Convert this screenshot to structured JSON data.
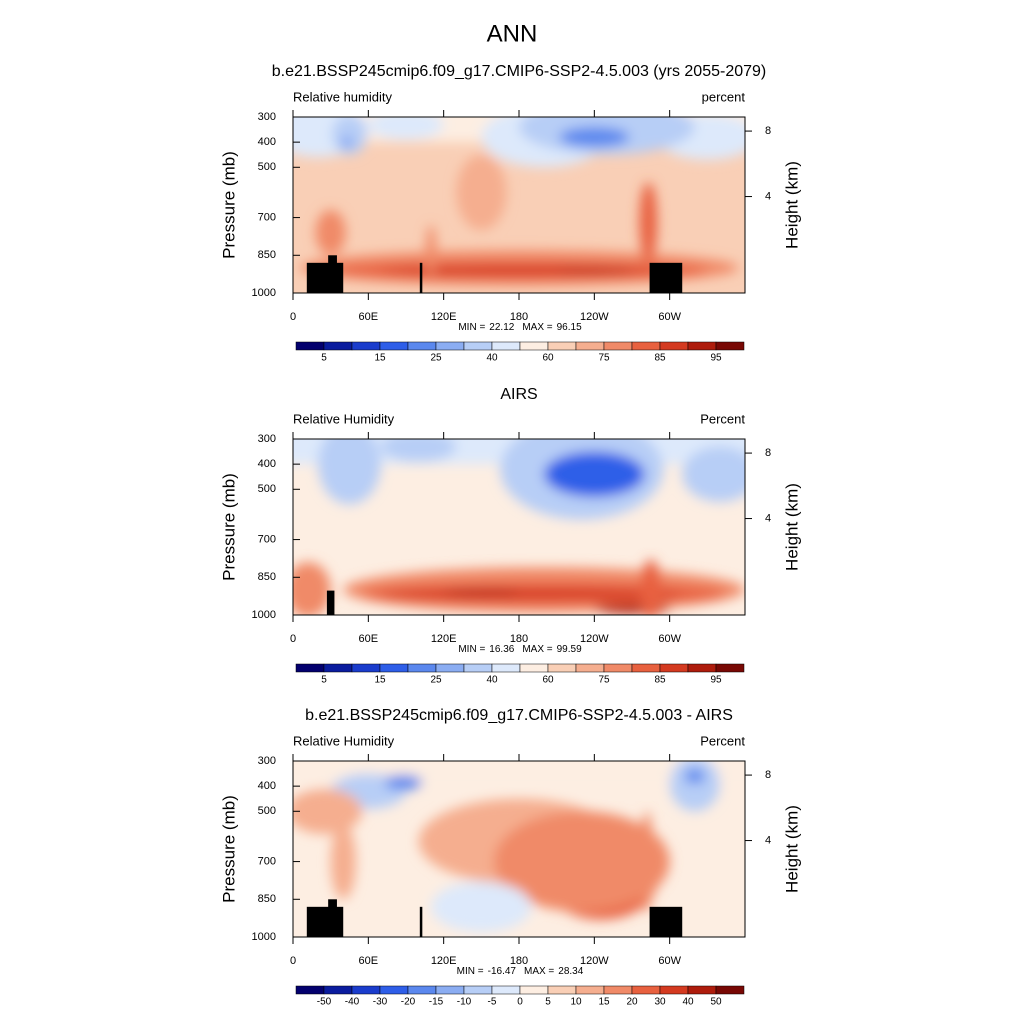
{
  "title": "ANN",
  "chart_data": [
    {
      "type": "contour",
      "title": "b.e21.BSSP245cmip6.f09_g17.CMIP6-SSP2-4.5.003 (yrs 2055-2079)",
      "left_label": "Relative humidity",
      "right_label": "percent",
      "ylabel": "Pressure (mb)",
      "y2label": "Height (km)",
      "xlim": [
        0,
        360
      ],
      "xticks": [
        0,
        {
          "value": 60,
          "label": "60E"
        },
        {
          "value": 120,
          "label": "120E"
        },
        180,
        {
          "value": 240,
          "label": "120W"
        },
        {
          "value": 300,
          "label": "60W"
        }
      ],
      "ylim": [
        1000,
        300
      ],
      "yticks": [
        300,
        400,
        500,
        700,
        850,
        1000
      ],
      "y2ticks": [
        4,
        8
      ],
      "min_label": "MIN =",
      "min": 22.12,
      "max_label": "MAX =",
      "max": 96.15,
      "colorbar": {
        "labels": [
          5,
          15,
          25,
          40,
          60,
          75,
          85,
          95
        ],
        "colors": [
          "#03006e",
          "#0a1c9e",
          "#1a3ccc",
          "#2e5ee8",
          "#5b88ee",
          "#8badf2",
          "#b7cef6",
          "#dde9fb",
          "#fdeee2",
          "#f9cfb6",
          "#f5ae8f",
          "#f08a68",
          "#e8613f",
          "#d43a20",
          "#ae1c0c",
          "#780804"
        ]
      }
    },
    {
      "type": "contour",
      "title": "AIRS",
      "left_label": "Relative Humidity",
      "right_label": "Percent",
      "ylabel": "Pressure (mb)",
      "y2label": "Height (km)",
      "xlim": [
        0,
        360
      ],
      "xticks": [
        0,
        {
          "value": 60,
          "label": "60E"
        },
        {
          "value": 120,
          "label": "120E"
        },
        180,
        {
          "value": 240,
          "label": "120W"
        },
        {
          "value": 300,
          "label": "60W"
        }
      ],
      "ylim": [
        1000,
        300
      ],
      "yticks": [
        300,
        400,
        500,
        700,
        850,
        1000
      ],
      "y2ticks": [
        4,
        8
      ],
      "min_label": "MIN =",
      "min": 16.36,
      "max_label": "MAX =",
      "max": 99.59,
      "colorbar": {
        "labels": [
          5,
          15,
          25,
          40,
          60,
          75,
          85,
          95
        ],
        "colors": [
          "#03006e",
          "#0a1c9e",
          "#1a3ccc",
          "#2e5ee8",
          "#5b88ee",
          "#8badf2",
          "#b7cef6",
          "#dde9fb",
          "#fdeee2",
          "#f9cfb6",
          "#f5ae8f",
          "#f08a68",
          "#e8613f",
          "#d43a20",
          "#ae1c0c",
          "#780804"
        ]
      }
    },
    {
      "type": "contour",
      "title": "b.e21.BSSP245cmip6.f09_g17.CMIP6-SSP2-4.5.003 - AIRS",
      "left_label": "Relative Humidity",
      "right_label": "Percent",
      "ylabel": "Pressure (mb)",
      "y2label": "Height (km)",
      "xlim": [
        0,
        360
      ],
      "xticks": [
        0,
        {
          "value": 60,
          "label": "60E"
        },
        {
          "value": 120,
          "label": "120E"
        },
        180,
        {
          "value": 240,
          "label": "120W"
        },
        {
          "value": 300,
          "label": "60W"
        }
      ],
      "ylim": [
        1000,
        300
      ],
      "yticks": [
        300,
        400,
        500,
        700,
        850,
        1000
      ],
      "y2ticks": [
        4,
        8
      ],
      "min_label": "MIN =",
      "min": -16.47,
      "max_label": "MAX =",
      "max": 28.34,
      "colorbar": {
        "labels": [
          -50,
          -40,
          -30,
          -20,
          -15,
          -10,
          -5,
          0,
          5,
          10,
          15,
          20,
          30,
          40,
          50
        ],
        "colors": [
          "#03006e",
          "#0a1c9e",
          "#1a3ccc",
          "#2e5ee8",
          "#5b88ee",
          "#8badf2",
          "#b7cef6",
          "#dde9fb",
          "#fdeee2",
          "#f9cfb6",
          "#f5ae8f",
          "#f08a68",
          "#e8613f",
          "#d43a20",
          "#ae1c0c",
          "#780804"
        ]
      }
    }
  ]
}
